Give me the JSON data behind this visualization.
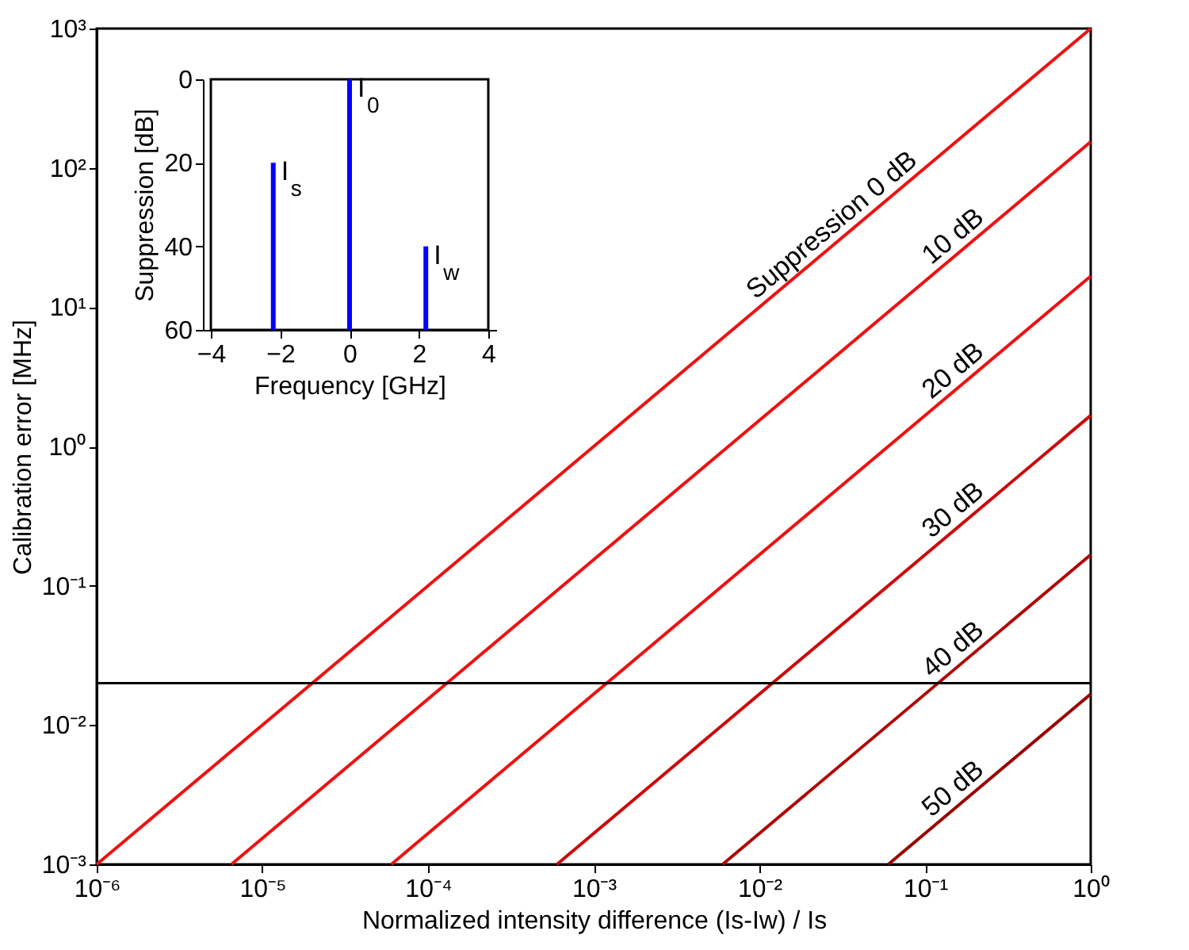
{
  "chart_data": [
    {
      "type": "line",
      "xlabel": "Normalized intensity difference (Is-Iw) / Is",
      "ylabel": "Calibration error [MHz]",
      "log": "xy",
      "grid": false,
      "marker": "none",
      "line_style": "solid",
      "xlim": [
        1e-06,
        1
      ],
      "ylim": [
        0.001,
        1000
      ],
      "xticks": [
        {
          "value": 1e-06,
          "label": "10⁻⁶"
        },
        {
          "value": 1e-05,
          "label": "10⁻⁵"
        },
        {
          "value": 0.0001,
          "label": "10⁻⁴"
        },
        {
          "value": 0.001,
          "label": "10⁻³"
        },
        {
          "value": 0.01,
          "label": "10⁻²"
        },
        {
          "value": 0.1,
          "label": "10⁻¹"
        },
        {
          "value": 1,
          "label": "10⁰"
        }
      ],
      "yticks": [
        {
          "value": 0.001,
          "label": "10⁻³"
        },
        {
          "value": 0.01,
          "label": "10⁻²"
        },
        {
          "value": 0.1,
          "label": "10⁻¹"
        },
        {
          "value": 1,
          "label": "10⁰"
        },
        {
          "value": 10,
          "label": "10¹"
        },
        {
          "value": 100,
          "label": "10²"
        },
        {
          "value": 1000,
          "label": "10³"
        }
      ],
      "series": [
        {
          "name": "Suppression 0 dB",
          "color": "#ee1111",
          "x": [
            1e-06,
            1
          ],
          "values": [
            0.001,
            1000
          ]
        },
        {
          "name": "10 dB",
          "color": "#ee1111",
          "x": [
            6.5e-06,
            1
          ],
          "values": [
            0.001,
            154
          ]
        },
        {
          "name": "20 dB",
          "color": "#ee1111",
          "x": [
            6e-05,
            1
          ],
          "values": [
            0.001,
            16.7
          ]
        },
        {
          "name": "30 dB",
          "color": "#cc0a0a",
          "x": [
            0.0006,
            1
          ],
          "values": [
            0.001,
            1.67
          ]
        },
        {
          "name": "40 dB",
          "color": "#b00808",
          "x": [
            0.006,
            1
          ],
          "values": [
            0.001,
            0.167
          ]
        },
        {
          "name": "50 dB",
          "color": "#990505",
          "x": [
            0.06,
            1
          ],
          "values": [
            0.001,
            0.0167
          ]
        }
      ],
      "ref_lines": [
        {
          "axis": "y",
          "value": 0.02,
          "color": "#000000"
        }
      ]
    },
    {
      "type": "bar",
      "xlabel": "Frequency [GHz]",
      "ylabel": "Suppression [dB]",
      "grid": false,
      "x": [
        -2.2,
        0,
        2.2
      ],
      "base": [
        60,
        60,
        60
      ],
      "values": [
        -40,
        -60,
        -20
      ],
      "color": "#0000ff",
      "xlim": [
        -4,
        4
      ],
      "xticks": [
        -4,
        -2,
        0,
        2,
        4
      ],
      "ylim": [
        60,
        0
      ],
      "yticks": [
        0,
        20,
        40,
        60
      ],
      "annotations": [
        {
          "text": "I$_{s}$",
          "x": -2.2,
          "y": 20
        },
        {
          "text": "I$_{0}$",
          "x": 0,
          "y": 0
        },
        {
          "text": "I$_{w}$",
          "x": 2.2,
          "y": 40
        }
      ]
    }
  ]
}
